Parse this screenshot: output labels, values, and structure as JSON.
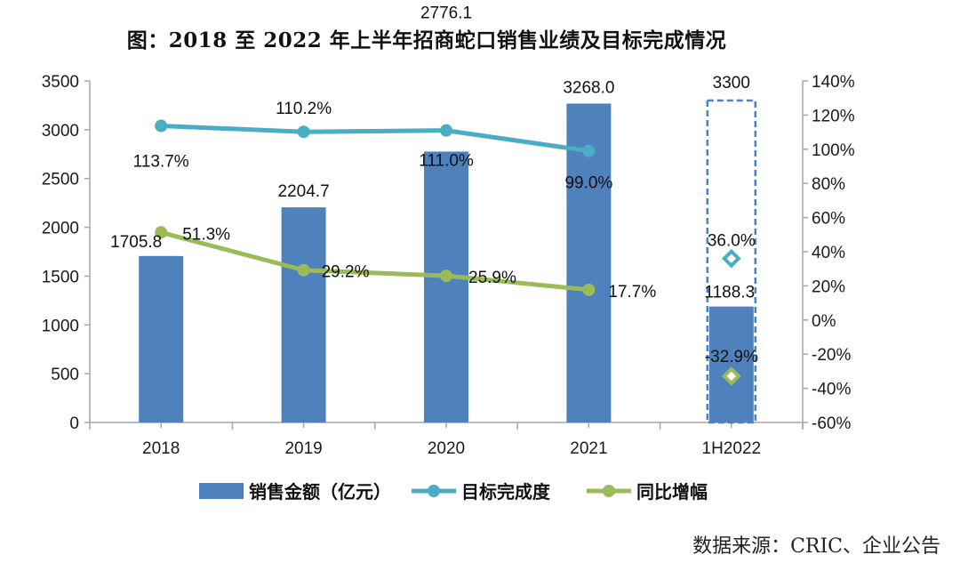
{
  "title": "图：2018 至 2022 年上半年招商蛇口销售业绩及目标完成情况",
  "source": "数据来源：CRIC、企业公告",
  "colors": {
    "bar": "#4f81bd",
    "target_line": "#4bacc6",
    "growth_line": "#9bbb59",
    "axis": "#a6a6a6"
  },
  "chart_data": {
    "type": "bar",
    "title": "图：2018 至 2022 年上半年招商蛇口销售业绩及目标完成情况",
    "categories": [
      "2018",
      "2019",
      "2020",
      "2021",
      "1H2022"
    ],
    "series": [
      {
        "name": "销售金额（亿元）",
        "type": "bar",
        "axis": "left",
        "values": [
          1705.8,
          2204.7,
          2776.1,
          3268.0,
          1188.3
        ],
        "labels": [
          "1705.8",
          "2204.7",
          "2776.1",
          "3268.0",
          "1188.3"
        ]
      },
      {
        "name": "目标完成度",
        "type": "line",
        "axis": "right",
        "values": [
          113.7,
          110.2,
          111.0,
          99.0,
          36.0
        ],
        "labels": [
          "113.7%",
          "110.2%",
          "111.0%",
          "99.0%",
          "36.0%"
        ]
      },
      {
        "name": "同比增幅",
        "type": "line",
        "axis": "right",
        "values": [
          51.3,
          29.2,
          25.9,
          17.7,
          -32.9
        ],
        "labels": [
          "51.3%",
          "29.2%",
          "25.9%",
          "17.7%",
          "-32.9%"
        ]
      }
    ],
    "target": {
      "category": "1H2022",
      "value": 3300,
      "label": "3300"
    },
    "left_axis": {
      "range": [
        0,
        3500
      ],
      "ticks": [
        "0",
        "500",
        "1000",
        "1500",
        "2000",
        "2500",
        "3000",
        "3500"
      ],
      "tick_values": [
        0,
        500,
        1000,
        1500,
        2000,
        2500,
        3000,
        3500
      ]
    },
    "right_axis": {
      "range": [
        -60,
        140
      ],
      "ticks": [
        "-60%",
        "-40%",
        "-20%",
        "0%",
        "20%",
        "40%",
        "60%",
        "80%",
        "100%",
        "120%",
        "140%"
      ],
      "tick_values": [
        -60,
        -40,
        -20,
        0,
        20,
        40,
        60,
        80,
        100,
        120,
        140
      ]
    },
    "xlabel": "",
    "ylabel": "",
    "grid": false,
    "legend_position": "bottom"
  }
}
